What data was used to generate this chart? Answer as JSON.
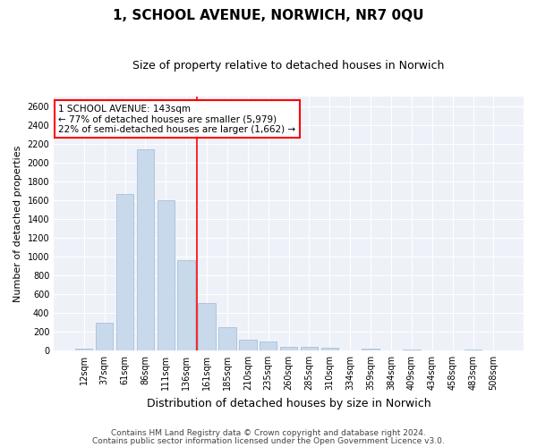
{
  "title1": "1, SCHOOL AVENUE, NORWICH, NR7 0QU",
  "title2": "Size of property relative to detached houses in Norwich",
  "xlabel": "Distribution of detached houses by size in Norwich",
  "ylabel": "Number of detached properties",
  "categories": [
    "12sqm",
    "37sqm",
    "61sqm",
    "86sqm",
    "111sqm",
    "136sqm",
    "161sqm",
    "185sqm",
    "210sqm",
    "235sqm",
    "260sqm",
    "285sqm",
    "310sqm",
    "334sqm",
    "359sqm",
    "384sqm",
    "409sqm",
    "434sqm",
    "458sqm",
    "483sqm",
    "508sqm"
  ],
  "values": [
    20,
    290,
    1660,
    2140,
    1600,
    960,
    500,
    245,
    115,
    95,
    40,
    35,
    25,
    0,
    15,
    0,
    10,
    0,
    0,
    10,
    0
  ],
  "bar_color": "#c9d9ec",
  "bar_edge_color": "#a8bfd8",
  "vline_x": 5.5,
  "vline_color": "red",
  "annotation_text": "1 SCHOOL AVENUE: 143sqm\n← 77% of detached houses are smaller (5,979)\n22% of semi-detached houses are larger (1,662) →",
  "ylim": [
    0,
    2700
  ],
  "yticks": [
    0,
    200,
    400,
    600,
    800,
    1000,
    1200,
    1400,
    1600,
    1800,
    2000,
    2200,
    2400,
    2600
  ],
  "footer1": "Contains HM Land Registry data © Crown copyright and database right 2024.",
  "footer2": "Contains public sector information licensed under the Open Government Licence v3.0.",
  "bg_color": "#eef2f8",
  "grid_color": "#ffffff",
  "title1_fontsize": 11,
  "title2_fontsize": 9,
  "xlabel_fontsize": 9,
  "ylabel_fontsize": 8,
  "tick_fontsize": 7,
  "footer_fontsize": 6.5,
  "annotation_fontsize": 7.5
}
